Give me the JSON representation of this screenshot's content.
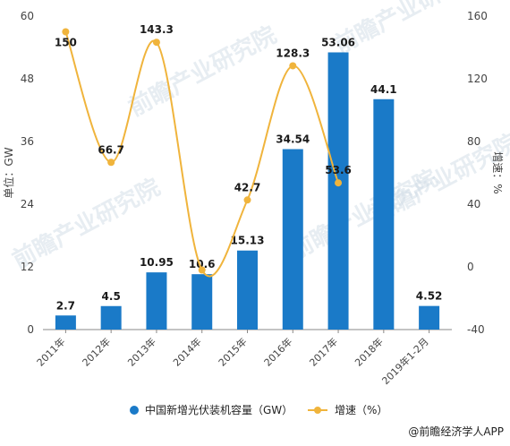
{
  "chart_data": {
    "type": "bar",
    "categories": [
      "2011年",
      "2012年",
      "2013年",
      "2014年",
      "2015年",
      "2016年",
      "2017年",
      "2018年",
      "2019年1-2月"
    ],
    "series": [
      {
        "name": "中国新增光伏装机容量（GW）",
        "type": "bar",
        "axis": "left",
        "color": "#1a7ac8",
        "values": [
          2.7,
          4.5,
          10.95,
          10.6,
          15.13,
          34.54,
          53.06,
          44.1,
          4.52
        ],
        "labels": [
          "2.7",
          "4.5",
          "10.95",
          "10.6",
          "15.13",
          "34.54",
          "53.06",
          "44.1",
          "4.52"
        ]
      },
      {
        "name": "增速（%）",
        "type": "line",
        "axis": "right",
        "color": "#f0b43c",
        "values": [
          150,
          66.7,
          143.3,
          -2,
          42.7,
          128.3,
          53.6,
          null,
          null
        ],
        "labels": [
          "150",
          "66.7",
          "143.3",
          "",
          "42.7",
          "128.3",
          "53.6",
          "",
          ""
        ]
      }
    ],
    "ylabel": "单位：GW",
    "y2label": "增速：%",
    "ylim": [
      0,
      60
    ],
    "yticks": [
      "0",
      "12",
      "24",
      "36",
      "48",
      "60"
    ],
    "y2lim": [
      -40,
      160
    ],
    "y2ticks": [
      "-40",
      "0",
      "40",
      "80",
      "120",
      "160"
    ],
    "legend_position": "bottom",
    "grid": false
  },
  "source": "@前瞻经济学人APP",
  "watermark": "前瞻产业研究院",
  "colors": {
    "bar": "#1a7ac8",
    "line": "#f0b43c"
  }
}
